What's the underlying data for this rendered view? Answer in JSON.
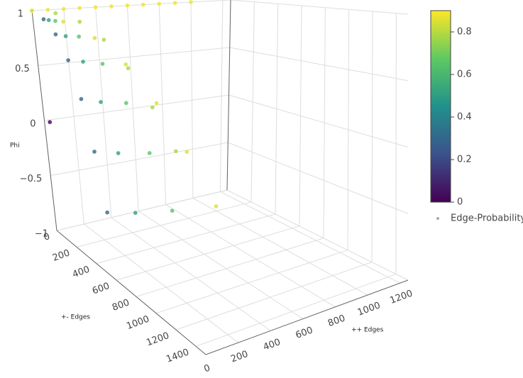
{
  "chart_data": {
    "type": "scatter3d",
    "xlabel": "++ Edges",
    "ylabel": "+- Edges",
    "zlabel": "Phi",
    "xlim": [
      0,
      1250
    ],
    "ylim": [
      0,
      1500
    ],
    "zlim": [
      -1,
      1
    ],
    "xticks": [
      0,
      200,
      400,
      600,
      800,
      1000,
      1200
    ],
    "yticks": [
      0,
      200,
      400,
      600,
      800,
      1000,
      1200,
      1400
    ],
    "zticks": [
      {
        "value": -1,
        "label": "−1"
      },
      {
        "value": -0.5,
        "label": "−0.5"
      },
      0,
      0.5,
      1
    ],
    "colorbar": {
      "lim": [
        0,
        0.9
      ],
      "ticks": [
        0,
        0.2,
        0.4,
        0.6,
        0.8
      ],
      "colorscale": "viridis"
    },
    "legend": "right",
    "series": [
      {
        "name": "Edge-Probability",
        "x": [
          0,
          10,
          20,
          30,
          40,
          50,
          60,
          0,
          42,
          83,
          125,
          167,
          208,
          250,
          0,
          83,
          167,
          250,
          333,
          417,
          500,
          0,
          133,
          267,
          400,
          533,
          667,
          800,
          0,
          108,
          217,
          325,
          433,
          542,
          650,
          0,
          100,
          200,
          300,
          400,
          500,
          600,
          700,
          800,
          900,
          1000,
          0
        ],
        "y": [
          0,
          75,
          150,
          225,
          300,
          375,
          450,
          0,
          75,
          150,
          225,
          300,
          375,
          450,
          0,
          75,
          150,
          225,
          300,
          375,
          450,
          0,
          75,
          150,
          225,
          300,
          375,
          450,
          0,
          50,
          100,
          150,
          200,
          250,
          300,
          0,
          0,
          0,
          0,
          0,
          0,
          0,
          0,
          0,
          0,
          0,
          50
        ],
        "z": [
          1,
          0.91,
          0.77,
          0.55,
          0.24,
          -0.16,
          -0.6,
          1,
          0.9,
          0.75,
          0.53,
          0.2,
          -0.2,
          -0.65,
          1,
          0.89,
          0.74,
          0.5,
          0.17,
          -0.24,
          -0.7,
          1,
          0.88,
          0.72,
          0.48,
          0.14,
          -0.28,
          -0.75,
          1,
          0.96,
          0.87,
          0.7,
          0.44,
          0.09,
          -0.3,
          1,
          1,
          1,
          1,
          1,
          1,
          1,
          1,
          1,
          1,
          1,
          0
        ],
        "color": [
          0.3,
          0.3,
          0.3,
          0.3,
          0.3,
          0.3,
          0.3,
          0.5,
          0.5,
          0.5,
          0.5,
          0.5,
          0.5,
          0.5,
          0.65,
          0.65,
          0.65,
          0.65,
          0.65,
          0.65,
          0.65,
          0.85,
          0.85,
          0.85,
          0.85,
          0.85,
          0.85,
          0.85,
          0.78,
          0.78,
          0.78,
          0.78,
          0.78,
          0.78,
          0.78,
          0.88,
          0.88,
          0.88,
          0.88,
          0.88,
          0.88,
          0.88,
          0.88,
          0.88,
          0.88,
          0.88,
          0
        ]
      }
    ]
  }
}
